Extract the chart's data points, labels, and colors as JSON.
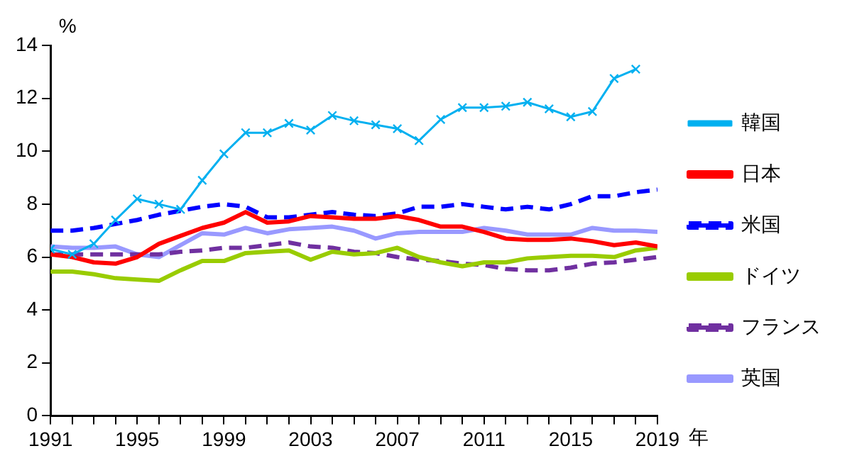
{
  "chart_data": {
    "type": "line",
    "ylabel": "%",
    "xlabel": "年",
    "x": [
      1991,
      1992,
      1993,
      1994,
      1995,
      1996,
      1997,
      1998,
      1999,
      2000,
      2001,
      2002,
      2003,
      2004,
      2005,
      2006,
      2007,
      2008,
      2009,
      2010,
      2011,
      2012,
      2013,
      2014,
      2015,
      2016,
      2017,
      2018,
      2019
    ],
    "xlim": [
      1991,
      2019
    ],
    "xticks": [
      1991,
      {
        "value": 1992,
        "label": null
      },
      {
        "value": 1993,
        "label": null
      },
      {
        "value": 1994,
        "label": null
      },
      1995,
      {
        "value": 1996,
        "label": null
      },
      {
        "value": 1997,
        "label": null
      },
      {
        "value": 1998,
        "label": null
      },
      1999,
      {
        "value": 2000,
        "label": null
      },
      {
        "value": 2001,
        "label": null
      },
      {
        "value": 2002,
        "label": null
      },
      2003,
      {
        "value": 2004,
        "label": null
      },
      {
        "value": 2005,
        "label": null
      },
      {
        "value": 2006,
        "label": null
      },
      2007,
      {
        "value": 2008,
        "label": null
      },
      {
        "value": 2009,
        "label": null
      },
      {
        "value": 2010,
        "label": null
      },
      2011,
      {
        "value": 2012,
        "label": null
      },
      {
        "value": 2013,
        "label": null
      },
      {
        "value": 2014,
        "label": null
      },
      2015,
      {
        "value": 2016,
        "label": null
      },
      {
        "value": 2017,
        "label": null
      },
      {
        "value": 2018,
        "label": null
      },
      2019
    ],
    "ylim": [
      0,
      14
    ],
    "yticks": [
      0,
      2,
      4,
      6,
      8,
      10,
      12,
      14
    ],
    "legend": "right",
    "marker": "none",
    "line_style": "solid",
    "series": [
      {
        "name": "日本",
        "color": "#ff0000",
        "values": [
          6.1,
          6.0,
          5.8,
          5.75,
          6.0,
          6.5,
          6.8,
          7.1,
          7.3,
          7.7,
          7.3,
          7.35,
          7.55,
          7.5,
          7.45,
          7.45,
          7.55,
          7.4,
          7.15,
          7.15,
          6.95,
          6.7,
          6.65,
          6.65,
          6.7,
          6.6,
          6.45,
          6.55,
          6.4
        ]
      },
      {
        "name": "米国",
        "color": "#0000ff",
        "line_style": "dashed",
        "values": [
          7.0,
          7.0,
          7.1,
          7.25,
          7.4,
          7.6,
          7.75,
          7.9,
          8.0,
          7.9,
          7.5,
          7.5,
          7.6,
          7.7,
          7.6,
          7.55,
          7.65,
          7.9,
          7.9,
          8.0,
          7.9,
          7.8,
          7.9,
          7.8,
          8.0,
          8.3,
          8.3,
          8.45,
          8.55
        ]
      },
      {
        "name": "ドイツ",
        "color": "#99cc00",
        "values": [
          5.45,
          5.45,
          5.35,
          5.2,
          5.15,
          5.1,
          5.5,
          5.85,
          5.85,
          6.15,
          6.2,
          6.25,
          5.9,
          6.2,
          6.1,
          6.15,
          6.35,
          6.0,
          5.8,
          5.65,
          5.8,
          5.8,
          5.95,
          6.0,
          6.05,
          6.05,
          6.0,
          6.25,
          6.35
        ]
      },
      {
        "name": "フランス",
        "color": "#7030a0",
        "line_style": "dashed",
        "values": [
          6.1,
          6.1,
          6.1,
          6.1,
          6.1,
          6.1,
          6.2,
          6.25,
          6.35,
          6.35,
          6.45,
          6.55,
          6.4,
          6.35,
          6.2,
          6.15,
          6.0,
          5.9,
          5.85,
          5.75,
          5.7,
          5.55,
          5.5,
          5.5,
          5.6,
          5.75,
          5.8,
          5.9,
          6.0
        ]
      },
      {
        "name": "英国",
        "color": "#9999ff",
        "values": [
          6.4,
          6.35,
          6.35,
          6.4,
          6.1,
          6.0,
          6.45,
          6.9,
          6.85,
          7.1,
          6.9,
          7.05,
          7.1,
          7.15,
          7.0,
          6.7,
          6.9,
          6.95,
          6.95,
          6.95,
          7.1,
          7.0,
          6.85,
          6.85,
          6.85,
          7.1,
          7.0,
          7.0,
          6.95
        ]
      },
      {
        "name": "韓国",
        "color": "#00b0f0",
        "marker": "cross",
        "values": [
          6.3,
          6.1,
          6.5,
          7.4,
          8.2,
          8.0,
          7.8,
          8.9,
          9.9,
          10.7,
          10.7,
          11.05,
          10.8,
          11.35,
          11.15,
          11.0,
          10.85,
          10.4,
          11.2,
          11.65,
          11.65,
          11.7,
          11.85,
          11.6,
          11.3,
          11.5,
          12.75,
          13.1,
          null
        ]
      }
    ]
  }
}
